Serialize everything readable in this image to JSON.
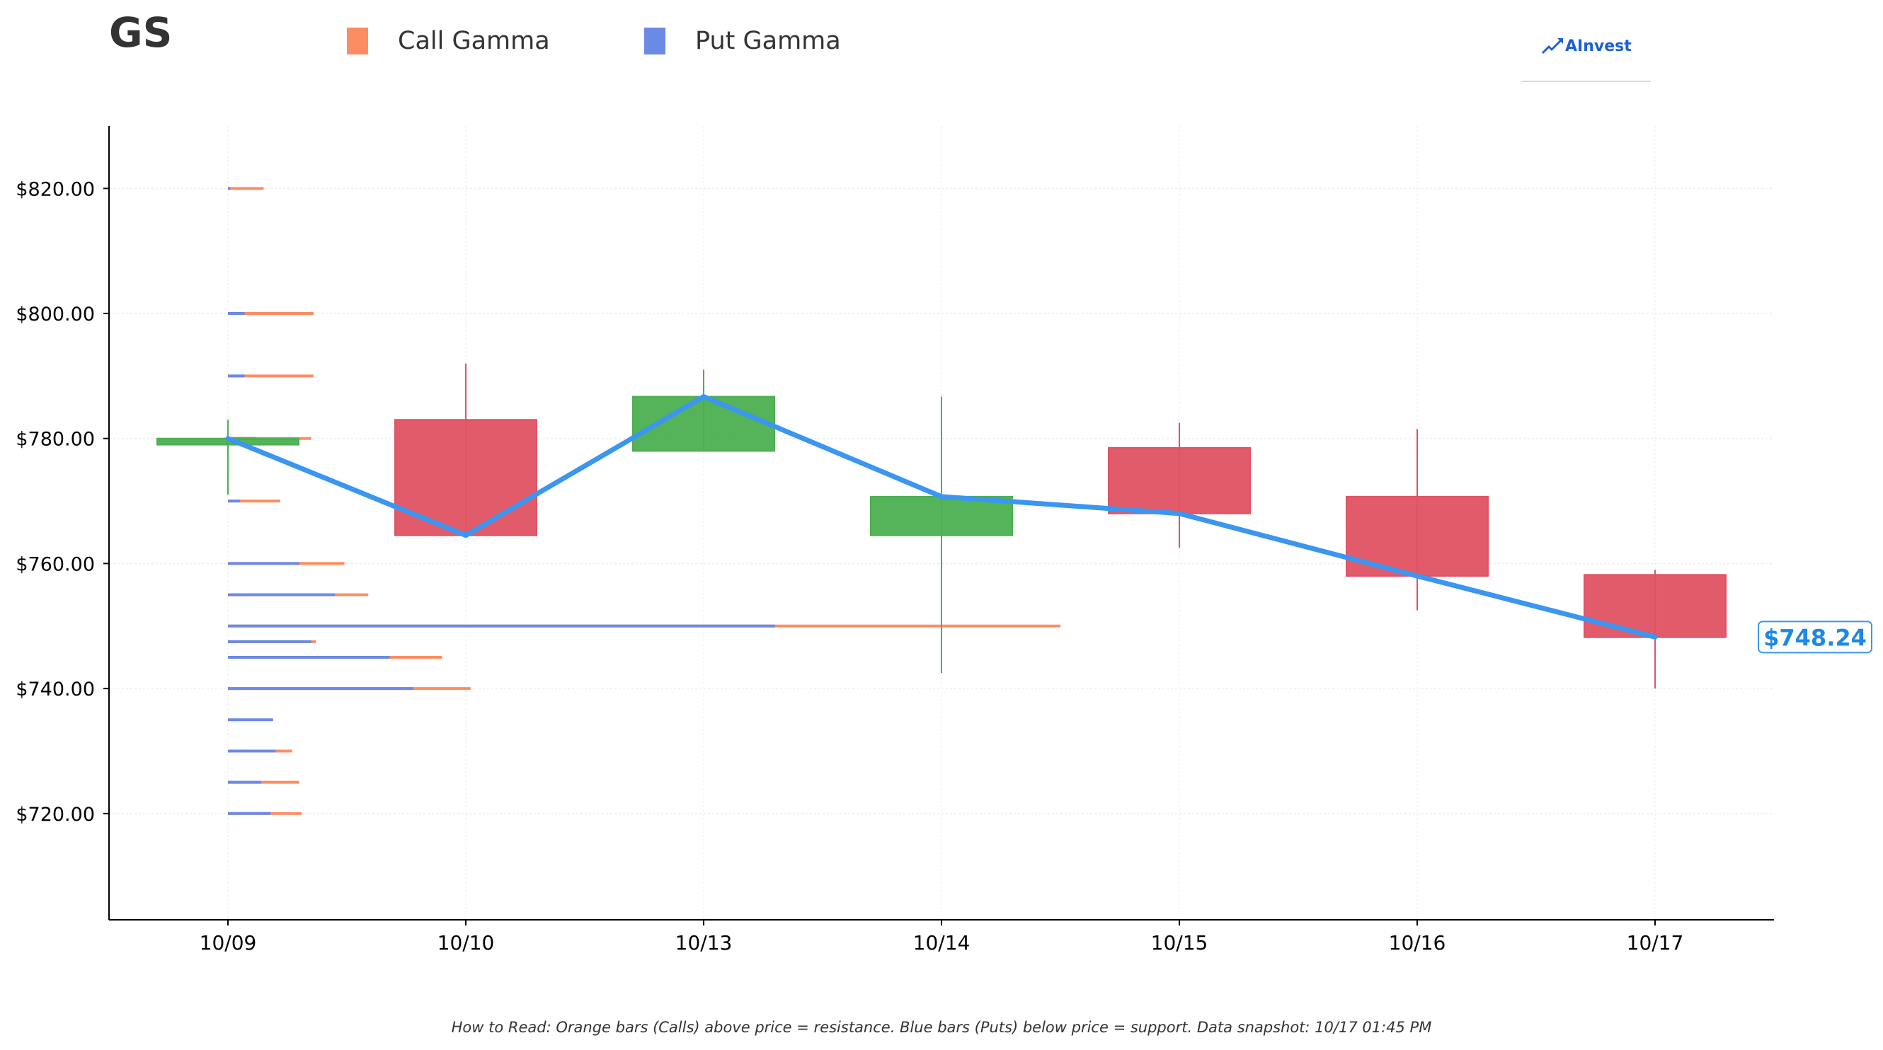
{
  "header": {
    "ticker": "GS",
    "legend": [
      {
        "label": "Call Gamma",
        "color": "#fc8d62"
      },
      {
        "label": "Put Gamma",
        "color": "#6b8ae6"
      }
    ],
    "logo_text": "AInvest"
  },
  "footer": {
    "note": "How to Read: Orange bars (Calls) above price = resistance. Blue bars (Puts) below price = support. Data snapshot: 10/17 01:45 PM"
  },
  "colors": {
    "up": "#4caf50",
    "down": "#e05263",
    "price_line": "#3a96f0",
    "call": "#fc8d62",
    "put": "#6b8ae6",
    "label_text": "#1e88e5"
  },
  "chart_data": {
    "type": "candlestick",
    "categories": [
      "10/09",
      "10/10",
      "10/13",
      "10/14",
      "10/15",
      "10/16",
      "10/17"
    ],
    "ylim": [
      703,
      830
    ],
    "yticks": [
      720,
      740,
      760,
      780,
      800,
      820
    ],
    "ytick_labels": [
      "$720.00",
      "$740.00",
      "$760.00",
      "$780.00",
      "$800.00",
      "$820.00"
    ],
    "ohlc": [
      {
        "open": 779,
        "high": 783,
        "low": 771,
        "close": 780
      },
      {
        "open": 783,
        "high": 792,
        "low": 764.5,
        "close": 764.5
      },
      {
        "open": 778,
        "high": 791,
        "low": 778,
        "close": 786.7
      },
      {
        "open": 764.5,
        "high": 786.7,
        "low": 742.5,
        "close": 770.7
      },
      {
        "open": 778.5,
        "high": 782.5,
        "low": 762.5,
        "close": 768
      },
      {
        "open": 770.7,
        "high": 781.5,
        "low": 752.5,
        "close": 758
      },
      {
        "open": 758.2,
        "high": 759,
        "low": 740,
        "close": 748.2
      }
    ],
    "price_line": [
      780,
      764.5,
      786.7,
      770.7,
      768,
      758,
      748.24
    ],
    "last_price_label": "$748.24",
    "gamma": {
      "note": "horizontal gamma bars drawn at strikes from the 10/09 axis; lengths in category-width units",
      "strikes": [
        820,
        800,
        790,
        780,
        770,
        760,
        755,
        750,
        747.5,
        745,
        740,
        735,
        730,
        725,
        720
      ],
      "put_length": [
        0.01,
        0.07,
        0.07,
        0.12,
        0.05,
        0.3,
        0.45,
        2.3,
        0.35,
        0.68,
        0.78,
        0.19,
        0.2,
        0.14,
        0.18
      ],
      "call_length": [
        0.15,
        0.36,
        0.36,
        0.35,
        0.22,
        0.49,
        0.59,
        3.5,
        0.37,
        0.9,
        1.02,
        0.0,
        0.27,
        0.3,
        0.31
      ]
    },
    "grid": true,
    "xlabel": "",
    "ylabel": ""
  }
}
